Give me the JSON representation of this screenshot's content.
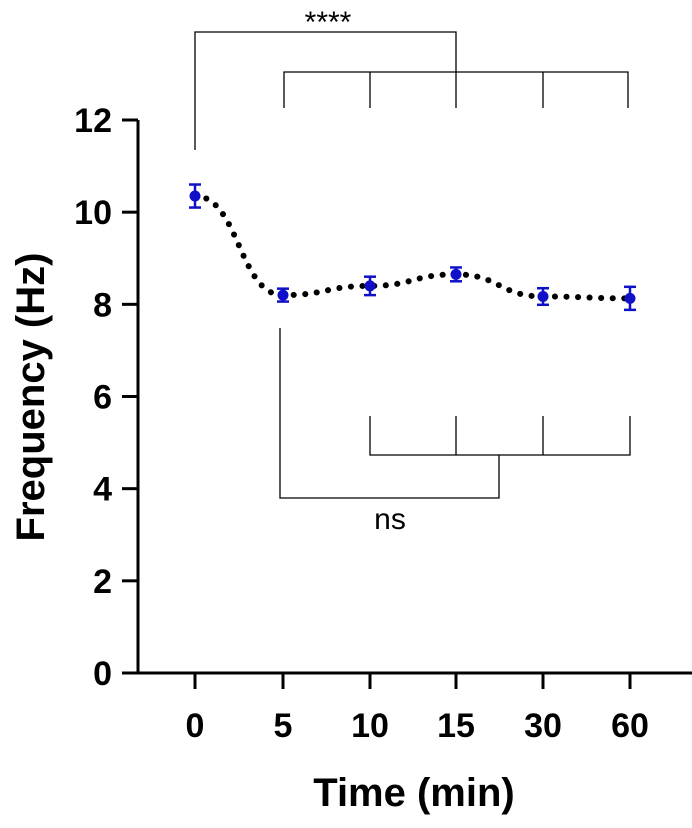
{
  "chart_data": {
    "type": "line",
    "categories": [
      "0",
      "5",
      "10",
      "15",
      "30",
      "60"
    ],
    "values": [
      10.35,
      8.2,
      8.4,
      8.65,
      8.17,
      8.13
    ],
    "errors": [
      0.25,
      0.14,
      0.2,
      0.15,
      0.18,
      0.25
    ],
    "xlabel": "Time (min)",
    "ylabel": "Frequency (Hz)",
    "ylim": [
      0,
      12
    ],
    "yticks": [
      "0",
      "2",
      "4",
      "6",
      "8",
      "10",
      "12"
    ],
    "grid": false,
    "marker_color": "#1010c8",
    "line_style": "dotted",
    "comparisons": [
      {
        "label": "****",
        "from": "0",
        "to": [
          "5",
          "10",
          "15",
          "30",
          "60"
        ]
      },
      {
        "label": "ns",
        "from": "5",
        "to": [
          "10",
          "15",
          "30",
          "60"
        ]
      }
    ]
  }
}
